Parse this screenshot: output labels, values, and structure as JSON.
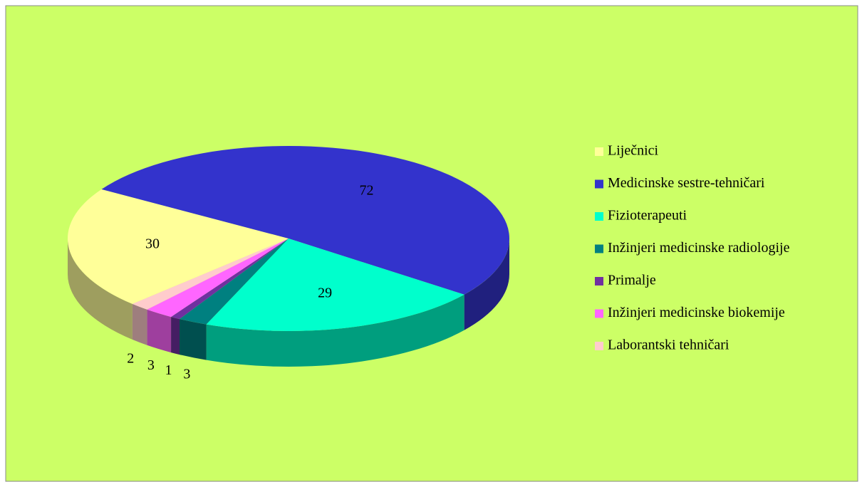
{
  "chart_data": {
    "type": "pie",
    "categories": [
      "Liječnici",
      "Medicinske sestre-tehničari",
      "Fizioterapeuti",
      "Inžinjeri medicinske radiologije",
      "Primalje",
      "Inžinjeri medicinske biokemije",
      "Laborantski tehničari"
    ],
    "values": [
      30,
      72,
      29,
      3,
      1,
      3,
      2
    ],
    "colors": [
      "#FFFF99",
      "#3333CC",
      "#00FFCC",
      "#008080",
      "#7030A0",
      "#FF66FF",
      "#FFCCCC"
    ],
    "legend": "right"
  }
}
